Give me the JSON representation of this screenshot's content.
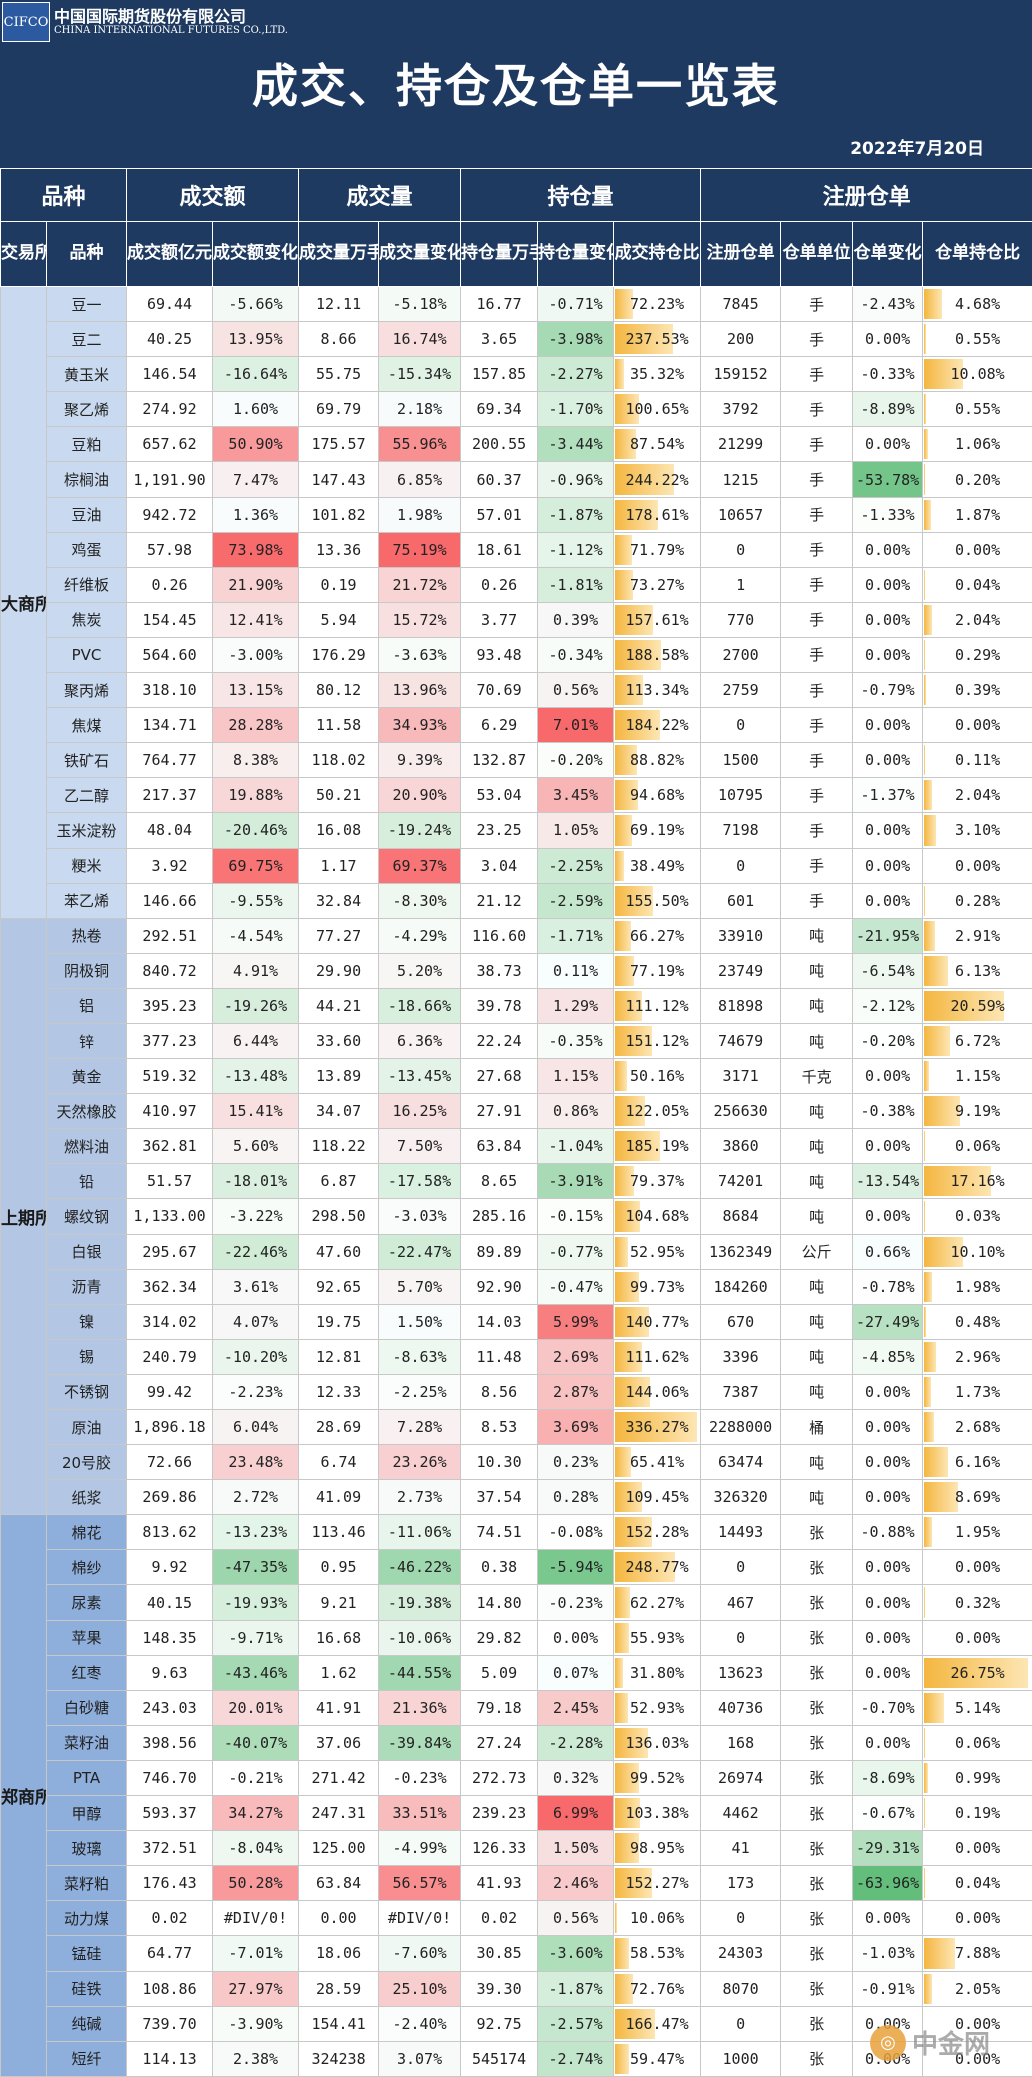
{
  "header": {
    "logo_mark": "CIFCO",
    "logo_cn": "中国国际期货股份有限公司",
    "logo_en": "CHINA INTERNATIONAL FUTURES CO.,LTD.",
    "title": "成交、持仓及仓单一览表",
    "date": "2022年7月20日"
  },
  "columns": {
    "groups": [
      "品种",
      "成交额",
      "成交量",
      "持仓量",
      "注册仓单"
    ],
    "sub": [
      "交易所",
      "品种",
      "成交额亿元",
      "成交额变化",
      "成交量万手",
      "成交量变化",
      "持仓量万手",
      "持仓量变化",
      "成交持仓比",
      "注册仓单",
      "仓单单位",
      "仓单变化",
      "仓单持仓比"
    ]
  },
  "colors": {
    "header_bg": "#1f3a60",
    "up": "#f8696b",
    "down": "#63be7b",
    "bar": "#f4b63f"
  },
  "exchanges": [
    {
      "name": "大商所",
      "bg": "#c9d9ef",
      "rows": [
        [
          "豆一",
          "69.44",
          "-5.66%",
          "12.11",
          "-5.18%",
          "16.77",
          "-0.71%",
          "72.23%",
          "7845",
          "手",
          "-2.43%",
          "4.68%"
        ],
        [
          "豆二",
          "40.25",
          "13.95%",
          "8.66",
          "16.74%",
          "3.65",
          "-3.98%",
          "237.53%",
          "200",
          "手",
          "0.00%",
          "0.55%"
        ],
        [
          "黄玉米",
          "146.54",
          "-16.64%",
          "55.75",
          "-15.34%",
          "157.85",
          "-2.27%",
          "35.32%",
          "159152",
          "手",
          "-0.33%",
          "10.08%"
        ],
        [
          "聚乙烯",
          "274.92",
          "1.60%",
          "69.79",
          "2.18%",
          "69.34",
          "-1.70%",
          "100.65%",
          "3792",
          "手",
          "-8.89%",
          "0.55%"
        ],
        [
          "豆粕",
          "657.62",
          "50.90%",
          "175.57",
          "55.96%",
          "200.55",
          "-3.44%",
          "87.54%",
          "21299",
          "手",
          "0.00%",
          "1.06%"
        ],
        [
          "棕榈油",
          "1,191.90",
          "7.47%",
          "147.43",
          "6.85%",
          "60.37",
          "-0.96%",
          "244.22%",
          "1215",
          "手",
          "-53.78%",
          "0.20%"
        ],
        [
          "豆油",
          "942.72",
          "1.36%",
          "101.82",
          "1.98%",
          "57.01",
          "-1.87%",
          "178.61%",
          "10657",
          "手",
          "-1.33%",
          "1.87%"
        ],
        [
          "鸡蛋",
          "57.98",
          "73.98%",
          "13.36",
          "75.19%",
          "18.61",
          "-1.12%",
          "71.79%",
          "0",
          "手",
          "0.00%",
          "0.00%"
        ],
        [
          "纤维板",
          "0.26",
          "21.90%",
          "0.19",
          "21.72%",
          "0.26",
          "-1.81%",
          "73.27%",
          "1",
          "手",
          "0.00%",
          "0.04%"
        ],
        [
          "焦炭",
          "154.45",
          "12.41%",
          "5.94",
          "15.72%",
          "3.77",
          "0.39%",
          "157.61%",
          "770",
          "手",
          "0.00%",
          "2.04%"
        ],
        [
          "PVC",
          "564.60",
          "-3.00%",
          "176.29",
          "-3.63%",
          "93.48",
          "-0.34%",
          "188.58%",
          "2700",
          "手",
          "0.00%",
          "0.29%"
        ],
        [
          "聚丙烯",
          "318.10",
          "13.15%",
          "80.12",
          "13.96%",
          "70.69",
          "0.56%",
          "113.34%",
          "2759",
          "手",
          "-0.79%",
          "0.39%"
        ],
        [
          "焦煤",
          "134.71",
          "28.28%",
          "11.58",
          "34.93%",
          "6.29",
          "7.01%",
          "184.22%",
          "0",
          "手",
          "0.00%",
          "0.00%"
        ],
        [
          "铁矿石",
          "764.77",
          "8.38%",
          "118.02",
          "9.39%",
          "132.87",
          "-0.20%",
          "88.82%",
          "1500",
          "手",
          "0.00%",
          "0.11%"
        ],
        [
          "乙二醇",
          "217.37",
          "19.88%",
          "50.21",
          "20.90%",
          "53.04",
          "3.45%",
          "94.68%",
          "10795",
          "手",
          "-1.37%",
          "2.04%"
        ],
        [
          "玉米淀粉",
          "48.04",
          "-20.46%",
          "16.08",
          "-19.24%",
          "23.25",
          "1.05%",
          "69.19%",
          "7198",
          "手",
          "0.00%",
          "3.10%"
        ],
        [
          "粳米",
          "3.92",
          "69.75%",
          "1.17",
          "69.37%",
          "3.04",
          "-2.25%",
          "38.49%",
          "0",
          "手",
          "0.00%",
          "0.00%"
        ],
        [
          "苯乙烯",
          "146.66",
          "-9.55%",
          "32.84",
          "-8.30%",
          "21.12",
          "-2.59%",
          "155.50%",
          "601",
          "手",
          "0.00%",
          "0.28%"
        ]
      ]
    },
    {
      "name": "上期所",
      "bg": "#b3c6e3",
      "rows": [
        [
          "热卷",
          "292.51",
          "-4.54%",
          "77.27",
          "-4.29%",
          "116.60",
          "-1.71%",
          "66.27%",
          "33910",
          "吨",
          "-21.95%",
          "2.91%"
        ],
        [
          "阴极铜",
          "840.72",
          "4.91%",
          "29.90",
          "5.20%",
          "38.73",
          "0.11%",
          "77.19%",
          "23749",
          "吨",
          "-6.54%",
          "6.13%"
        ],
        [
          "铝",
          "395.23",
          "-19.26%",
          "44.21",
          "-18.66%",
          "39.78",
          "1.29%",
          "111.12%",
          "81898",
          "吨",
          "-2.12%",
          "20.59%"
        ],
        [
          "锌",
          "377.23",
          "6.44%",
          "33.60",
          "6.36%",
          "22.24",
          "-0.35%",
          "151.12%",
          "74679",
          "吨",
          "-0.20%",
          "6.72%"
        ],
        [
          "黄金",
          "519.32",
          "-13.48%",
          "13.89",
          "-13.45%",
          "27.68",
          "1.15%",
          "50.16%",
          "3171",
          "千克",
          "0.00%",
          "1.15%"
        ],
        [
          "天然橡胶",
          "410.97",
          "15.41%",
          "34.07",
          "16.25%",
          "27.91",
          "0.86%",
          "122.05%",
          "256630",
          "吨",
          "-0.38%",
          "9.19%"
        ],
        [
          "燃料油",
          "362.81",
          "5.60%",
          "118.22",
          "7.50%",
          "63.84",
          "-1.04%",
          "185.19%",
          "3860",
          "吨",
          "0.00%",
          "0.06%"
        ],
        [
          "铅",
          "51.57",
          "-18.01%",
          "6.87",
          "-17.58%",
          "8.65",
          "-3.91%",
          "79.37%",
          "74201",
          "吨",
          "-13.54%",
          "17.16%"
        ],
        [
          "螺纹钢",
          "1,133.00",
          "-3.22%",
          "298.50",
          "-3.03%",
          "285.16",
          "-0.15%",
          "104.68%",
          "8684",
          "吨",
          "0.00%",
          "0.03%"
        ],
        [
          "白银",
          "295.67",
          "-22.46%",
          "47.60",
          "-22.47%",
          "89.89",
          "-0.77%",
          "52.95%",
          "1362349",
          "公斤",
          "0.66%",
          "10.10%"
        ],
        [
          "沥青",
          "362.34",
          "3.61%",
          "92.65",
          "5.70%",
          "92.90",
          "-0.47%",
          "99.73%",
          "184260",
          "吨",
          "-0.78%",
          "1.98%"
        ],
        [
          "镍",
          "314.02",
          "4.07%",
          "19.75",
          "1.50%",
          "14.03",
          "5.99%",
          "140.77%",
          "670",
          "吨",
          "-27.49%",
          "0.48%"
        ],
        [
          "锡",
          "240.79",
          "-10.20%",
          "12.81",
          "-8.63%",
          "11.48",
          "2.69%",
          "111.62%",
          "3396",
          "吨",
          "-4.85%",
          "2.96%"
        ],
        [
          "不锈钢",
          "99.42",
          "-2.23%",
          "12.33",
          "-2.25%",
          "8.56",
          "2.87%",
          "144.06%",
          "7387",
          "吨",
          "0.00%",
          "1.73%"
        ],
        [
          "原油",
          "1,896.18",
          "6.04%",
          "28.69",
          "7.28%",
          "8.53",
          "3.69%",
          "336.27%",
          "2288000",
          "桶",
          "0.00%",
          "2.68%"
        ],
        [
          "20号胶",
          "72.66",
          "23.48%",
          "6.74",
          "23.26%",
          "10.30",
          "0.23%",
          "65.41%",
          "63474",
          "吨",
          "0.00%",
          "6.16%"
        ],
        [
          "纸浆",
          "269.86",
          "2.72%",
          "41.09",
          "2.73%",
          "37.54",
          "0.28%",
          "109.45%",
          "326320",
          "吨",
          "0.00%",
          "8.69%"
        ]
      ]
    },
    {
      "name": "郑商所",
      "bg": "#8eaedb",
      "rows": [
        [
          "棉花",
          "813.62",
          "-13.23%",
          "113.46",
          "-11.06%",
          "74.51",
          "-0.08%",
          "152.28%",
          "14493",
          "张",
          "-0.88%",
          "1.95%"
        ],
        [
          "棉纱",
          "9.92",
          "-47.35%",
          "0.95",
          "-46.22%",
          "0.38",
          "-5.94%",
          "248.77%",
          "0",
          "张",
          "0.00%",
          "0.00%"
        ],
        [
          "尿素",
          "40.15",
          "-19.93%",
          "9.21",
          "-19.38%",
          "14.80",
          "-0.23%",
          "62.27%",
          "467",
          "张",
          "0.00%",
          "0.32%"
        ],
        [
          "苹果",
          "148.35",
          "-9.71%",
          "16.68",
          "-10.06%",
          "29.82",
          "0.00%",
          "55.93%",
          "0",
          "张",
          "0.00%",
          "0.00%"
        ],
        [
          "红枣",
          "9.63",
          "-43.46%",
          "1.62",
          "-44.55%",
          "5.09",
          "0.07%",
          "31.80%",
          "13623",
          "张",
          "0.00%",
          "26.75%"
        ],
        [
          "白砂糖",
          "243.03",
          "20.01%",
          "41.91",
          "21.36%",
          "79.18",
          "2.45%",
          "52.93%",
          "40736",
          "张",
          "-0.70%",
          "5.14%"
        ],
        [
          "菜籽油",
          "398.56",
          "-40.07%",
          "37.06",
          "-39.84%",
          "27.24",
          "-2.28%",
          "136.03%",
          "168",
          "张",
          "0.00%",
          "0.06%"
        ],
        [
          "PTA",
          "746.70",
          "-0.21%",
          "271.42",
          "-0.23%",
          "272.73",
          "0.32%",
          "99.52%",
          "26974",
          "张",
          "-8.69%",
          "0.99%"
        ],
        [
          "甲醇",
          "593.37",
          "34.27%",
          "247.31",
          "33.51%",
          "239.23",
          "6.99%",
          "103.38%",
          "4462",
          "张",
          "-0.67%",
          "0.19%"
        ],
        [
          "玻璃",
          "372.51",
          "-8.04%",
          "125.00",
          "-4.99%",
          "126.33",
          "1.50%",
          "98.95%",
          "41",
          "张",
          "-29.31%",
          "0.00%"
        ],
        [
          "菜籽粕",
          "176.43",
          "50.28%",
          "63.84",
          "56.57%",
          "41.93",
          "2.46%",
          "152.27%",
          "173",
          "张",
          "-63.96%",
          "0.04%"
        ],
        [
          "动力煤",
          "0.02",
          "#DIV/0!",
          "0.00",
          "#DIV/0!",
          "0.02",
          "0.56%",
          "10.06%",
          "0",
          "张",
          "0.00%",
          "0.00%"
        ],
        [
          "锰硅",
          "64.77",
          "-7.01%",
          "18.06",
          "-7.60%",
          "30.85",
          "-3.60%",
          "58.53%",
          "24303",
          "张",
          "-1.03%",
          "7.88%"
        ],
        [
          "硅铁",
          "108.86",
          "27.97%",
          "28.59",
          "25.10%",
          "39.30",
          "-1.87%",
          "72.76%",
          "8070",
          "张",
          "-0.91%",
          "2.05%"
        ],
        [
          "纯碱",
          "739.70",
          "-3.90%",
          "154.41",
          "-2.40%",
          "92.75",
          "-2.57%",
          "166.47%",
          "0",
          "张",
          "0.00%",
          "0.00%"
        ],
        [
          "短纤",
          "114.13",
          "2.38%",
          "324238",
          "3.07%",
          "545174",
          "-2.74%",
          "59.47%",
          "1000",
          "张",
          "0.00%",
          "0.00%"
        ]
      ]
    }
  ],
  "watermark": {
    "icon": "coin-icon",
    "text": "中金网"
  }
}
